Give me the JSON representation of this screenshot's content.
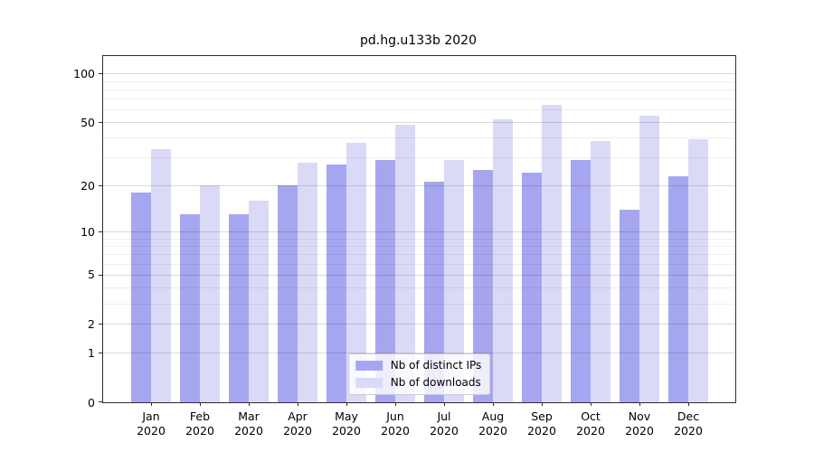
{
  "chart_data": {
    "type": "bar",
    "title": "pd.hg.u133b 2020",
    "categories": [
      "Jan",
      "Feb",
      "Mar",
      "Apr",
      "May",
      "Jun",
      "Jul",
      "Aug",
      "Sep",
      "Oct",
      "Nov",
      "Dec"
    ],
    "category_year": "2020",
    "series": [
      {
        "name": "Nb of distinct IPs",
        "color": "#a6a6f0",
        "values": [
          18,
          13,
          13,
          20,
          27,
          29,
          21,
          25,
          24,
          29,
          14,
          23
        ]
      },
      {
        "name": "Nb of downloads",
        "color": "#dadaf7",
        "values": [
          34,
          20,
          16,
          28,
          37,
          48,
          29,
          52,
          64,
          38,
          55,
          39
        ]
      }
    ],
    "xlabel": "",
    "ylabel": "",
    "yscale": "log1p",
    "ylim": [
      0,
      128
    ],
    "yticks": [
      0,
      1,
      2,
      5,
      10,
      20,
      50,
      100
    ],
    "yminorticks": [
      3,
      4,
      6,
      7,
      8,
      9,
      30,
      40,
      60,
      70,
      80,
      90
    ],
    "grid": "horizontal-major-and-minor-above-bars",
    "legend_position": "lower center"
  }
}
